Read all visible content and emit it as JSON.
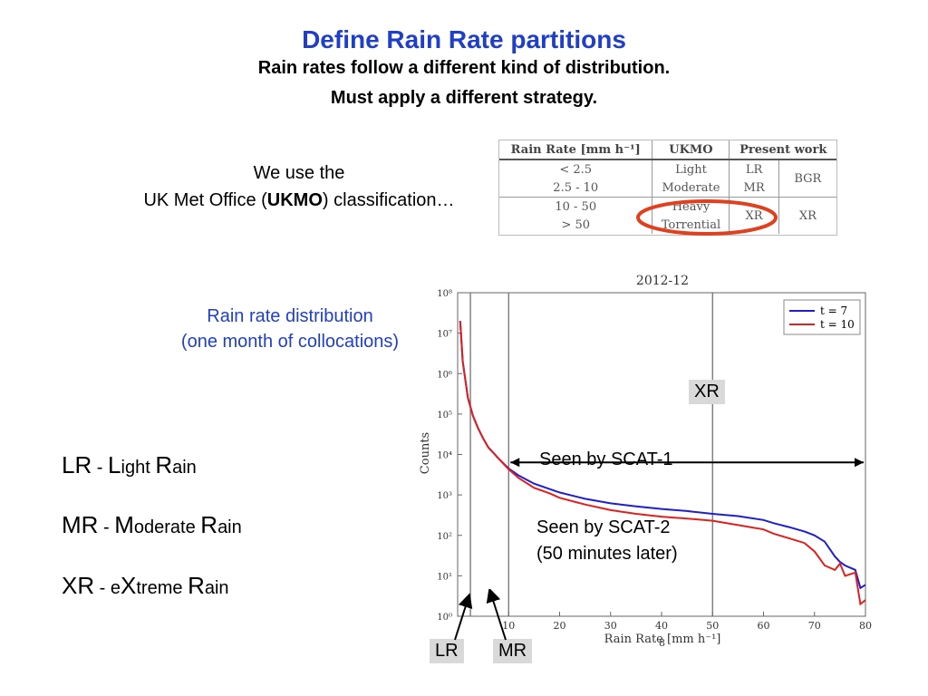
{
  "slide": {
    "title": "Define Rain Rate partitions",
    "subtitle1": "Rain rates follow a different kind of distribution.",
    "subtitle2": "Must apply a different strategy.",
    "ukmo_line1": "We use the",
    "ukmo_line2_pre": "UK Met Office (",
    "ukmo_line2_bold": "UKMO",
    "ukmo_line2_post": ") classification…",
    "dist_line1": "Rain rate distribution",
    "dist_line2": "(one month of collocations)",
    "page_number": "8"
  },
  "table": {
    "headers": [
      "Rain Rate [mm h⁻¹]",
      "UKMO",
      "Present work"
    ],
    "rows": [
      {
        "range": "< 2.5",
        "ukmo": "Light",
        "present": "LR"
      },
      {
        "range": "2.5 - 10",
        "ukmo": "Moderate",
        "present": "MR"
      },
      {
        "range": "10 - 50",
        "ukmo": "Heavy",
        "present": "XR"
      },
      {
        "range": "> 50",
        "ukmo": "Torrential",
        "present": ""
      }
    ],
    "group_bgr": "BGR",
    "group_xr": "XR"
  },
  "legend_defs": [
    {
      "abbr": "LR",
      "dash": " - ",
      "cap1": "L",
      "rest1": "ight ",
      "cap2": "R",
      "rest2": "ain"
    },
    {
      "abbr": "MR",
      "dash": " - ",
      "cap1": "M",
      "rest1": "oderate ",
      "cap2": "R",
      "rest2": "ain"
    },
    {
      "abbr": "XR",
      "dash": " - ",
      "pre": "e",
      "cap1": "X",
      "rest1": "treme ",
      "cap2": "R",
      "rest2": "ain"
    }
  ],
  "annotations": {
    "xr_label": "XR",
    "scat1": "Seen by SCAT-1",
    "scat2_line1": "Seen by SCAT-2",
    "scat2_line2": "(50 minutes later)",
    "lr_label": "LR",
    "mr_label": "MR"
  },
  "colors": {
    "title_blue": "#1f3fc8",
    "t7": "#1f1fd0",
    "t10": "#e0201e",
    "circle": "#e0401e"
  },
  "chart_data": {
    "type": "line",
    "title": "2012-12",
    "xlabel": "Rain Rate [mm h⁻¹]",
    "ylabel": "Counts",
    "yscale": "log",
    "xlim": [
      0,
      80
    ],
    "ylim": [
      1,
      100000000
    ],
    "x_ticks": [
      10,
      20,
      30,
      40,
      50,
      60,
      70,
      80
    ],
    "y_ticks": [
      "10⁰",
      "10¹",
      "10²",
      "10³",
      "10⁴",
      "10⁵",
      "10⁶",
      "10⁷",
      "10⁸"
    ],
    "vlines": [
      2.5,
      10,
      50
    ],
    "legend_location": "top-right",
    "series": [
      {
        "name": "t = 7",
        "x": [
          0.5,
          1,
          2,
          3,
          4,
          5,
          6,
          7,
          8,
          10,
          12,
          15,
          18,
          20,
          25,
          30,
          35,
          40,
          45,
          50,
          55,
          60,
          62,
          65,
          68,
          70,
          72,
          74,
          75,
          76,
          78,
          79,
          80
        ],
        "y": [
          20000000,
          2000000,
          250000,
          90000,
          45000,
          25000,
          15000,
          11000,
          8000,
          4500,
          3000,
          1900,
          1400,
          1150,
          800,
          620,
          520,
          450,
          400,
          340,
          300,
          240,
          200,
          160,
          125,
          100,
          70,
          30,
          22,
          18,
          14,
          5,
          6
        ]
      },
      {
        "name": "t = 10",
        "x": [
          0.5,
          1,
          2,
          3,
          4,
          5,
          6,
          7,
          8,
          10,
          12,
          15,
          18,
          20,
          25,
          30,
          35,
          40,
          45,
          50,
          55,
          60,
          62,
          65,
          68,
          70,
          72,
          74,
          75,
          76,
          78,
          79,
          80
        ],
        "y": [
          20000000,
          2000000,
          250000,
          90000,
          45000,
          25000,
          15000,
          11000,
          8000,
          4300,
          2600,
          1500,
          1100,
          850,
          580,
          420,
          340,
          290,
          260,
          230,
          180,
          140,
          110,
          85,
          65,
          40,
          18,
          14,
          20,
          10,
          12,
          2,
          2.5
        ]
      }
    ]
  }
}
